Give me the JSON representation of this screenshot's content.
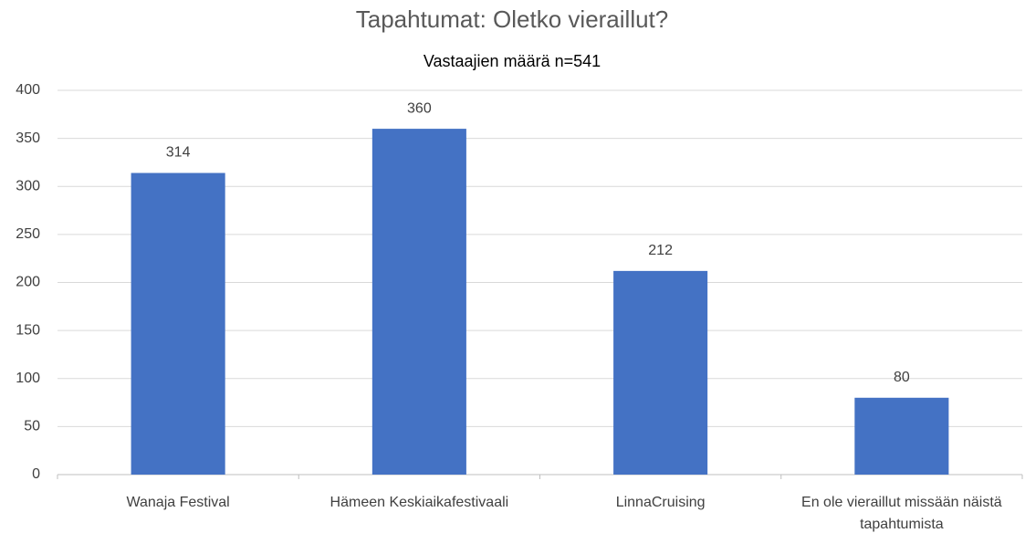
{
  "chart_data": {
    "type": "bar",
    "title": "Tapahtumat: Oletko vieraillut?",
    "subtitle": "Vastaajien määrä n=541",
    "categories": [
      "Wanaja Festival",
      "Hämeen Keskiaikafestivaali",
      "LinnaCruising",
      "En ole vieraillut missään näistä tapahtumista"
    ],
    "values": [
      314,
      360,
      212,
      80
    ],
    "color": "#4472c4",
    "ylim": [
      0,
      400
    ],
    "yticks": [
      0,
      50,
      100,
      150,
      200,
      250,
      300,
      350,
      400
    ],
    "grid": true
  }
}
